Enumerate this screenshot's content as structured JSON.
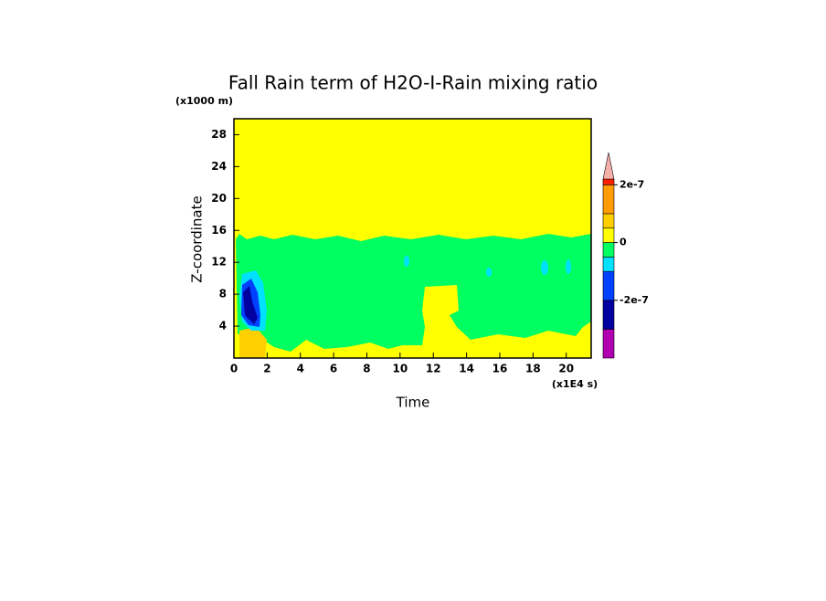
{
  "chart_data": {
    "type": "contour",
    "title": "Fall Rain term of H2O-I-Rain mixing ratio",
    "x_label": "Time",
    "y_label": "Z-coordinate",
    "x_unit": "(x1E4 s)",
    "y_unit": "(x1000 m)",
    "xlim": [
      0,
      21.5
    ],
    "ylim": [
      0,
      30
    ],
    "xticks": [
      0,
      2,
      4,
      6,
      8,
      10,
      12,
      14,
      16,
      18,
      20
    ],
    "yticks": [
      4,
      8,
      12,
      16,
      20,
      24,
      28
    ],
    "colorbar": {
      "levels": [
        -4e-07,
        -3e-07,
        -2e-07,
        -1e-07,
        -5e-08,
        0,
        5e-08,
        1e-07,
        2e-07,
        2.2e-07
      ],
      "colors": [
        "#b000b0",
        "#0000a0",
        "#0040ff",
        "#00e0ff",
        "#00ff60",
        "#ffff00",
        "#ffd000",
        "#ff9c00",
        "#ff2000"
      ],
      "extend_color": "#f4b0a8",
      "ticks": [
        {
          "value": -2e-07,
          "label": "-2e-7"
        },
        {
          "value": 0,
          "label": "0"
        },
        {
          "value": 2e-07,
          "label": "2e-7"
        }
      ]
    }
  }
}
